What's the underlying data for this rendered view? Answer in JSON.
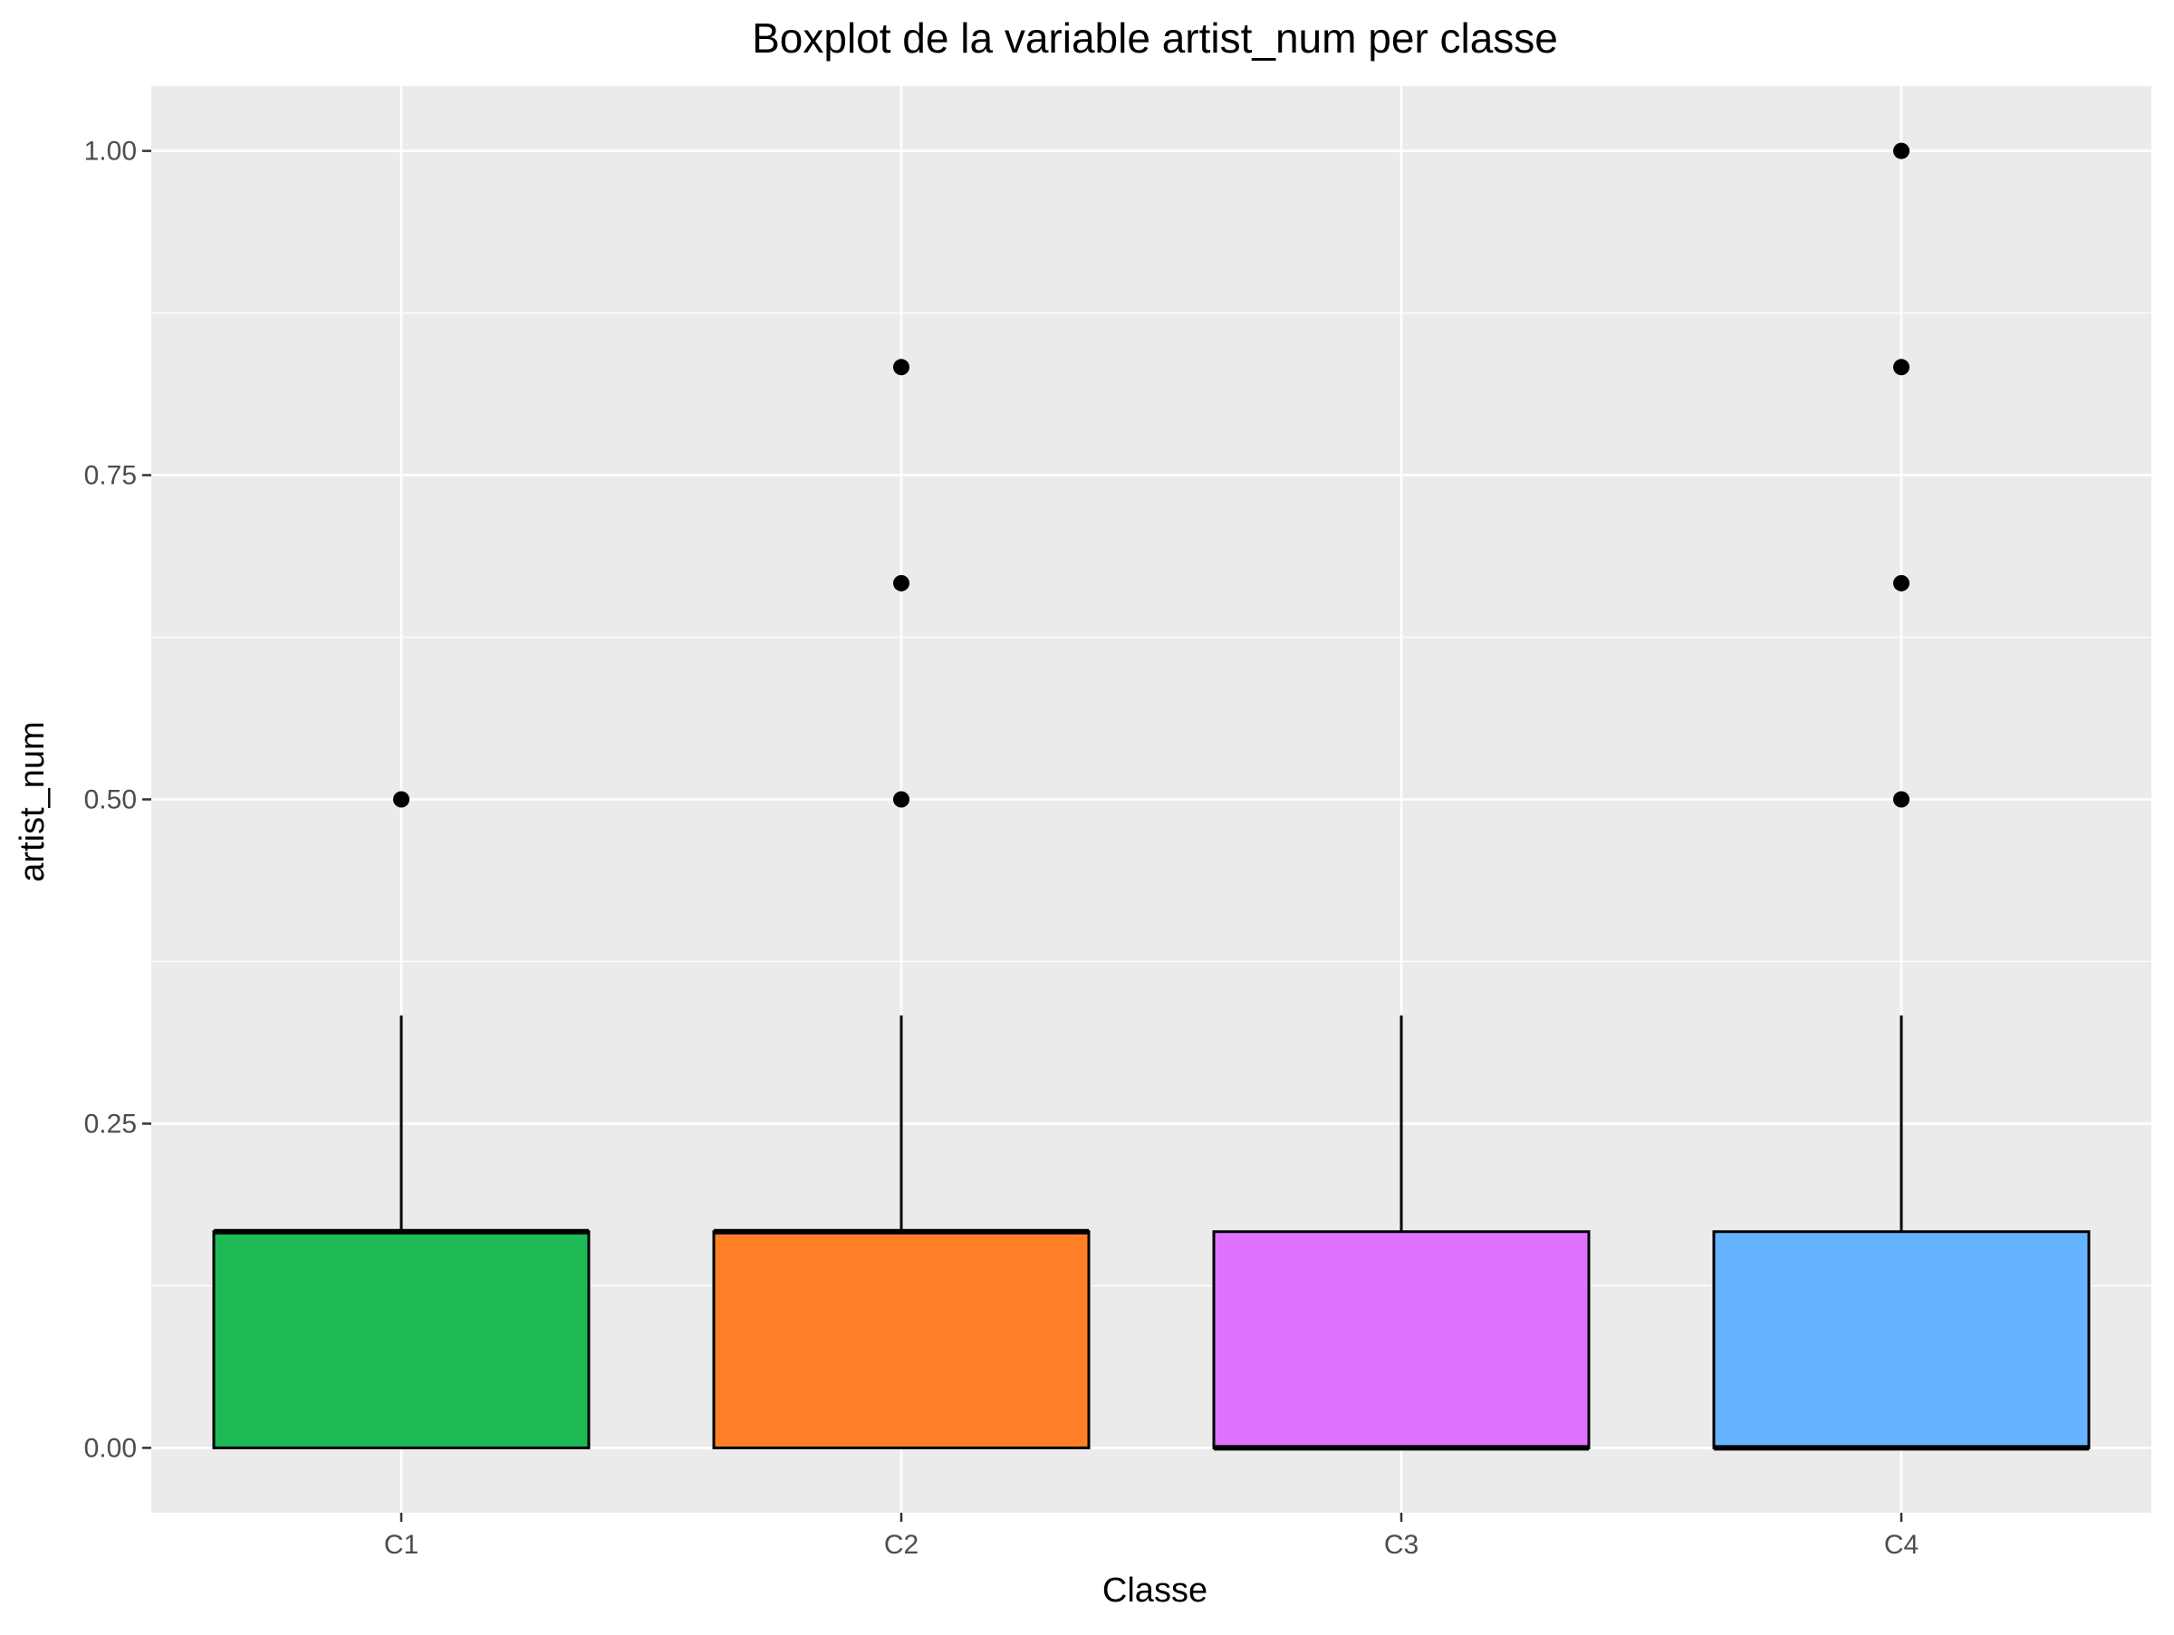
{
  "chart_data": {
    "type": "boxplot",
    "title": "Boxplot de la variable artist_num per classe",
    "xlabel": "Classe",
    "ylabel": "artist_num",
    "ylim": [
      -0.05,
      1.05
    ],
    "y_ticks": [
      0,
      0.25,
      0.5,
      0.75,
      1.0
    ],
    "y_tick_labels": [
      "0.00",
      "0.25",
      "0.50",
      "0.75",
      "1.00"
    ],
    "grid": true,
    "legend": "none",
    "categories": [
      "C1",
      "C2",
      "C3",
      "C4"
    ],
    "boxes": [
      {
        "category": "C1",
        "min": 0,
        "q1": 0,
        "median": 0.1667,
        "q3": 0.1667,
        "max": 0.3333,
        "outliers": [
          0.5
        ],
        "color": "#1DB954"
      },
      {
        "category": "C2",
        "min": 0,
        "q1": 0,
        "median": 0.1667,
        "q3": 0.1667,
        "max": 0.3333,
        "outliers": [
          0.5,
          0.6667,
          0.8333
        ],
        "color": "#FF7F27"
      },
      {
        "category": "C3",
        "min": 0,
        "q1": 0,
        "median": 0,
        "q3": 0.1667,
        "max": 0.3333,
        "outliers": [],
        "color": "#DF73FF"
      },
      {
        "category": "C4",
        "min": 0,
        "q1": 0,
        "median": 0,
        "q3": 0.1667,
        "max": 0.3333,
        "outliers": [
          0.5,
          0.6667,
          0.8333,
          1.0
        ],
        "color": "#66B4FF"
      }
    ],
    "panel_background": "#EBEBEB",
    "gridline_color": "#FFFFFF"
  }
}
